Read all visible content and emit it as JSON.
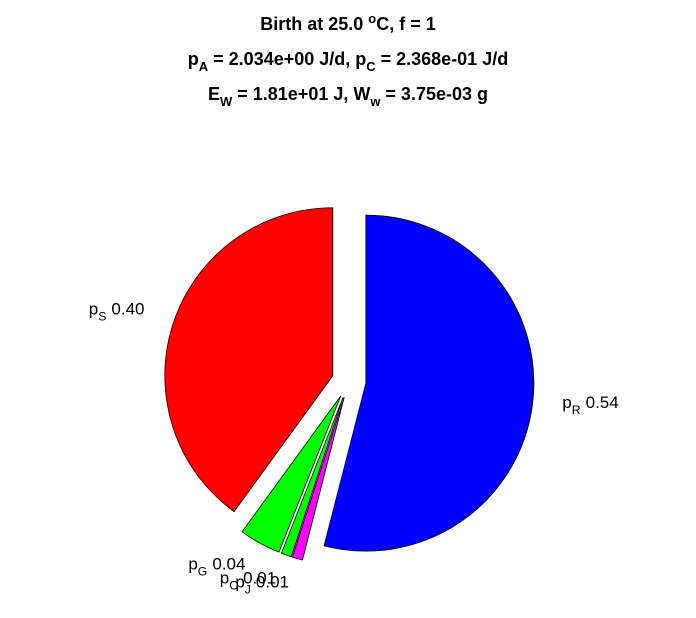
{
  "chart_data": {
    "type": "pie",
    "title": [
      [
        {
          "t": "Birth at 25.0 "
        },
        {
          "sup": "o"
        },
        {
          "t": "C, f = 1"
        }
      ],
      [
        {
          "t": "p"
        },
        {
          "sub": "A"
        },
        {
          "t": " = 2.034e+00 J/d, p"
        },
        {
          "sub": "C"
        },
        {
          "t": " = 2.368e-01 J/d"
        }
      ],
      [
        {
          "t": "E"
        },
        {
          "sub": "W"
        },
        {
          "t": " = 1.81e+01 J, W"
        },
        {
          "sub": "w"
        },
        {
          "t": " = 3.75e-03 g"
        }
      ]
    ],
    "categories": [
      [
        {
          "t": "p"
        },
        {
          "sub": "R"
        }
      ],
      [
        {
          "t": "p"
        },
        {
          "sub": "J"
        }
      ],
      [
        {
          "t": "p"
        },
        {
          "sub": "C"
        }
      ],
      [
        {
          "t": "p"
        },
        {
          "sub": "G"
        }
      ],
      [
        {
          "t": "p"
        },
        {
          "sub": "S"
        }
      ]
    ],
    "values": [
      0.54,
      0.01,
      0.01,
      0.04,
      0.4
    ],
    "value_labels": [
      "0.54",
      "0.01",
      "0.01",
      "0.04",
      "0.40"
    ],
    "colors": [
      "#0000ff",
      "#ff00ff",
      "#00ff00",
      "#00ff00",
      "#ff0000"
    ]
  }
}
